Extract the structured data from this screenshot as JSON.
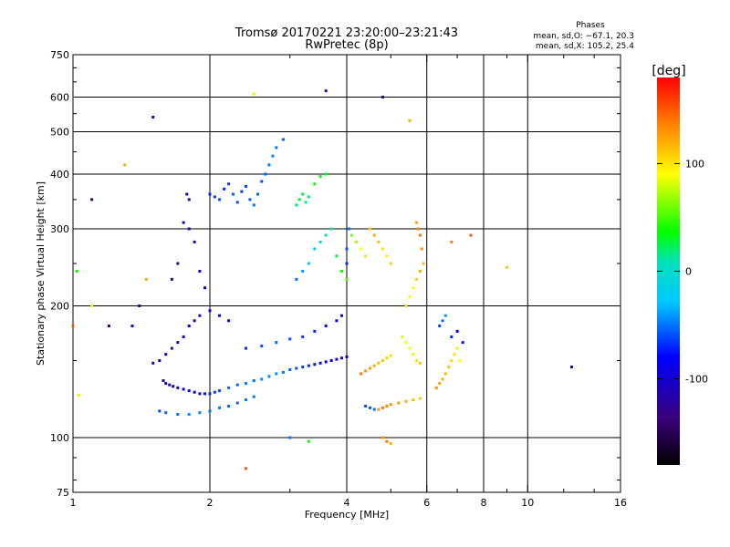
{
  "chart_data": {
    "type": "scatter",
    "title": "Tromsø 20170221 23:20:00–23:21:43",
    "subtitle": "RwPretec (8p)",
    "xlabel": "Frequency [MHz]",
    "ylabel": "Stationary phase Virtual Height [km]",
    "x_scale": "log",
    "y_scale": "log",
    "xlim": [
      1,
      16
    ],
    "ylim": [
      75,
      750
    ],
    "x_ticks": [
      1,
      2,
      4,
      6,
      8,
      10,
      16
    ],
    "x_minor_ticks": [
      3,
      5,
      7,
      9,
      12,
      14
    ],
    "y_ticks": [
      75,
      100,
      200,
      300,
      400,
      500,
      600,
      750
    ],
    "y_minor_ticks": [
      80,
      90,
      150,
      250,
      350,
      450,
      550,
      650,
      700
    ],
    "grid": true,
    "grid_x": [
      2,
      4,
      6,
      8,
      10
    ],
    "grid_y": [
      100,
      200,
      300,
      400,
      500,
      600
    ],
    "colorbar": {
      "label": "[deg]",
      "range": [
        -180,
        180
      ],
      "ticks": [
        100,
        0,
        -100
      ]
    },
    "stats": {
      "title": "Phases",
      "line1": "mean, sd,O: −67.1, 20.3",
      "line2": "mean, sd,X: 105.2, 25.4"
    },
    "series": [
      {
        "values": [
          [
            1.58,
            135,
            -120
          ],
          [
            1.6,
            133,
            -110
          ],
          [
            1.63,
            132,
            -115
          ],
          [
            1.66,
            131,
            -105
          ],
          [
            1.7,
            130,
            -100
          ],
          [
            1.75,
            129,
            -95
          ],
          [
            1.8,
            128,
            -90
          ],
          [
            1.85,
            127,
            -85
          ],
          [
            1.9,
            126,
            -80
          ],
          [
            1.95,
            126,
            -75
          ],
          [
            2.0,
            126,
            -70
          ],
          [
            2.05,
            127,
            -65
          ],
          [
            2.1,
            128,
            -60
          ],
          [
            2.2,
            130,
            -55
          ],
          [
            2.3,
            132,
            -55
          ],
          [
            2.4,
            133,
            -50
          ],
          [
            2.5,
            135,
            -50
          ],
          [
            2.6,
            136,
            -45
          ],
          [
            2.7,
            138,
            -45
          ],
          [
            2.8,
            140,
            -45
          ],
          [
            2.9,
            141,
            -50
          ],
          [
            3.0,
            143,
            -55
          ],
          [
            3.1,
            144,
            -60
          ],
          [
            3.2,
            145,
            -65
          ],
          [
            3.3,
            146,
            -70
          ],
          [
            3.4,
            147,
            -75
          ],
          [
            3.5,
            148,
            -80
          ],
          [
            3.6,
            149,
            -85
          ],
          [
            3.7,
            150,
            -85
          ],
          [
            3.8,
            151,
            -90
          ],
          [
            3.9,
            152,
            -90
          ],
          [
            4.0,
            153,
            -95
          ],
          [
            1.55,
            115,
            -60
          ],
          [
            1.6,
            114,
            -55
          ],
          [
            1.7,
            113,
            -50
          ],
          [
            1.8,
            113,
            -45
          ],
          [
            1.9,
            114,
            -45
          ],
          [
            2.0,
            115,
            -50
          ],
          [
            2.1,
            117,
            -50
          ],
          [
            2.2,
            118,
            -55
          ],
          [
            2.3,
            120,
            -55
          ],
          [
            2.4,
            122,
            -50
          ],
          [
            2.5,
            124,
            -50
          ],
          [
            1.5,
            148,
            -120
          ],
          [
            1.55,
            150,
            -115
          ],
          [
            1.6,
            155,
            -110
          ],
          [
            1.65,
            160,
            -120
          ],
          [
            1.7,
            165,
            -110
          ],
          [
            1.75,
            170,
            -100
          ],
          [
            1.8,
            180,
            -105
          ],
          [
            1.85,
            185,
            -110
          ],
          [
            1.9,
            190,
            -100
          ],
          [
            2.0,
            195,
            -90
          ],
          [
            2.1,
            190,
            -85
          ],
          [
            2.2,
            185,
            -80
          ],
          [
            2.4,
            160,
            -70
          ],
          [
            2.6,
            162,
            -60
          ],
          [
            2.8,
            165,
            -55
          ],
          [
            3.0,
            168,
            -60
          ],
          [
            3.2,
            170,
            -65
          ],
          [
            3.4,
            175,
            -70
          ],
          [
            3.6,
            180,
            -75
          ],
          [
            3.8,
            185,
            -80
          ],
          [
            3.9,
            190,
            -85
          ],
          [
            2.0,
            360,
            -70
          ],
          [
            2.05,
            355,
            -65
          ],
          [
            2.1,
            350,
            -60
          ],
          [
            2.15,
            370,
            -70
          ],
          [
            2.2,
            380,
            -65
          ],
          [
            2.25,
            360,
            -55
          ],
          [
            2.3,
            345,
            -60
          ],
          [
            2.35,
            365,
            -65
          ],
          [
            2.4,
            375,
            -60
          ],
          [
            2.45,
            350,
            -55
          ],
          [
            2.5,
            340,
            -50
          ],
          [
            2.55,
            360,
            -55
          ],
          [
            2.6,
            385,
            -60
          ],
          [
            2.65,
            400,
            -55
          ],
          [
            2.7,
            420,
            -50
          ],
          [
            2.75,
            440,
            -45
          ],
          [
            2.8,
            460,
            -50
          ],
          [
            2.9,
            480,
            -55
          ],
          [
            1.8,
            300,
            -110
          ],
          [
            1.75,
            310,
            -115
          ],
          [
            1.85,
            280,
            -120
          ],
          [
            1.7,
            250,
            -125
          ],
          [
            1.9,
            240,
            -110
          ],
          [
            1.95,
            220,
            -105
          ],
          [
            1.65,
            230,
            -130
          ],
          [
            1.8,
            350,
            -120
          ],
          [
            1.78,
            360,
            -115
          ],
          [
            3.1,
            340,
            20
          ],
          [
            3.15,
            350,
            30
          ],
          [
            3.2,
            360,
            25
          ],
          [
            3.25,
            345,
            15
          ],
          [
            3.3,
            355,
            20
          ],
          [
            3.4,
            380,
            40
          ],
          [
            3.5,
            395,
            35
          ],
          [
            3.6,
            400,
            30
          ],
          [
            3.1,
            230,
            -50
          ],
          [
            3.2,
            240,
            -40
          ],
          [
            3.3,
            250,
            -30
          ],
          [
            3.4,
            270,
            -20
          ],
          [
            3.5,
            280,
            -10
          ],
          [
            3.6,
            290,
            0
          ],
          [
            3.7,
            300,
            10
          ],
          [
            3.8,
            260,
            30
          ],
          [
            3.9,
            240,
            40
          ],
          [
            4.0,
            230,
            50
          ],
          [
            4.0,
            250,
            -70
          ],
          [
            4.0,
            270,
            -60
          ],
          [
            4.05,
            300,
            -50
          ],
          [
            4.1,
            290,
            60
          ],
          [
            4.2,
            280,
            70
          ],
          [
            4.3,
            270,
            90
          ],
          [
            4.4,
            260,
            100
          ],
          [
            4.5,
            300,
            110
          ],
          [
            4.6,
            290,
            120
          ],
          [
            4.7,
            280,
            115
          ],
          [
            4.8,
            270,
            100
          ],
          [
            4.9,
            260,
            95
          ],
          [
            5.0,
            250,
            105
          ],
          [
            4.3,
            140,
            140
          ],
          [
            4.4,
            142,
            130
          ],
          [
            4.5,
            144,
            125
          ],
          [
            4.6,
            146,
            120
          ],
          [
            4.7,
            148,
            115
          ],
          [
            4.8,
            150,
            110
          ],
          [
            4.9,
            152,
            105
          ],
          [
            5.0,
            154,
            100
          ],
          [
            4.4,
            118,
            -60
          ],
          [
            4.5,
            117,
            -55
          ],
          [
            4.6,
            116,
            -50
          ],
          [
            4.7,
            116,
            130
          ],
          [
            4.8,
            117,
            140
          ],
          [
            4.9,
            118,
            135
          ],
          [
            5.0,
            119,
            130
          ],
          [
            5.2,
            120,
            125
          ],
          [
            5.4,
            121,
            120
          ],
          [
            5.6,
            122,
            115
          ],
          [
            5.8,
            123,
            110
          ],
          [
            5.4,
            200,
            100
          ],
          [
            5.5,
            210,
            95
          ],
          [
            5.6,
            220,
            90
          ],
          [
            5.7,
            230,
            110
          ],
          [
            5.8,
            240,
            120
          ],
          [
            5.9,
            250,
            115
          ],
          [
            5.85,
            270,
            130
          ],
          [
            5.8,
            290,
            140
          ],
          [
            5.75,
            300,
            135
          ],
          [
            5.7,
            310,
            125
          ],
          [
            5.3,
            170,
            80
          ],
          [
            5.4,
            165,
            85
          ],
          [
            5.5,
            160,
            90
          ],
          [
            5.6,
            155,
            95
          ],
          [
            5.7,
            150,
            100
          ],
          [
            5.8,
            148,
            110
          ],
          [
            6.3,
            130,
            130
          ],
          [
            6.4,
            133,
            125
          ],
          [
            6.5,
            136,
            120
          ],
          [
            6.6,
            140,
            115
          ],
          [
            6.7,
            145,
            110
          ],
          [
            6.8,
            150,
            105
          ],
          [
            6.9,
            155,
            100
          ],
          [
            7.0,
            160,
            95
          ],
          [
            7.1,
            150,
            90
          ],
          [
            6.4,
            180,
            -60
          ],
          [
            6.5,
            185,
            -50
          ],
          [
            6.6,
            190,
            -40
          ],
          [
            6.8,
            170,
            -70
          ],
          [
            7.0,
            175,
            -80
          ],
          [
            7.2,
            165,
            -75
          ],
          [
            4.8,
            100,
            130
          ],
          [
            4.9,
            98,
            140
          ],
          [
            5.0,
            97,
            120
          ],
          [
            3.0,
            100,
            -50
          ],
          [
            3.3,
            98,
            40
          ],
          [
            2.4,
            85,
            150
          ],
          [
            6.8,
            280,
            140
          ],
          [
            7.5,
            290,
            150
          ],
          [
            9.0,
            245,
            110
          ],
          [
            12.5,
            145,
            -110
          ],
          [
            1.4,
            200,
            -130
          ],
          [
            1.35,
            180,
            -120
          ],
          [
            1.2,
            180,
            -140
          ],
          [
            1.0,
            180,
            150
          ],
          [
            1.1,
            350,
            -140
          ],
          [
            1.45,
            230,
            120
          ],
          [
            1.5,
            540,
            -130
          ],
          [
            2.5,
            610,
            80
          ],
          [
            3.6,
            620,
            -130
          ],
          [
            4.8,
            600,
            -120
          ],
          [
            5.5,
            530,
            120
          ],
          [
            1.02,
            240,
            40
          ],
          [
            1.03,
            125,
            100
          ],
          [
            1.1,
            200,
            80
          ],
          [
            1.3,
            420,
            120
          ]
        ]
      }
    ]
  }
}
